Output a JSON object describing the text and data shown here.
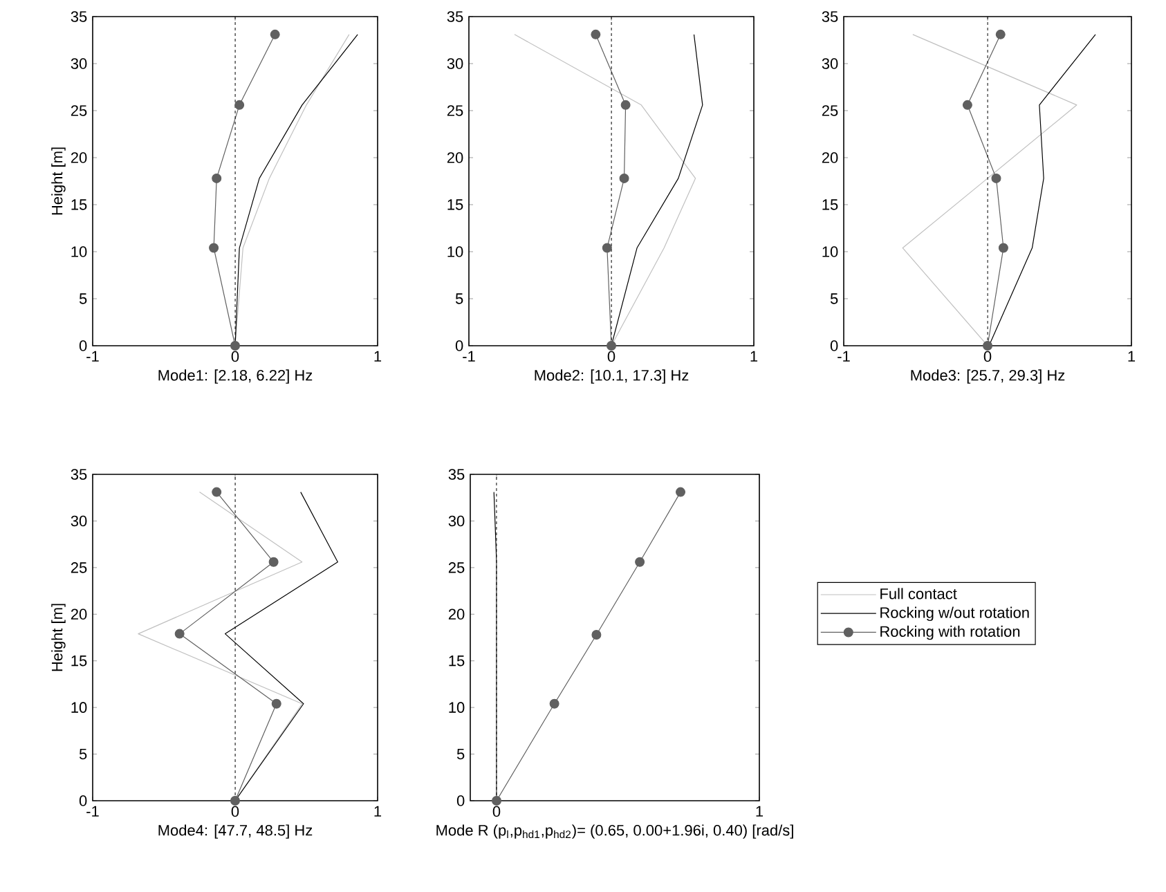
{
  "chart_data": [
    {
      "type": "line",
      "xlabel": "Mode1: [2.18, 6.22] Hz",
      "ylabel": "Height [m]",
      "xlim": [
        -1,
        1
      ],
      "xticks": [
        -1,
        0,
        1
      ],
      "ylim": [
        0,
        35
      ],
      "yticks": [
        0,
        5,
        10,
        15,
        20,
        25,
        30,
        35
      ],
      "ref_lines": [
        {
          "axis": "x",
          "value": 0,
          "line_style": "dashed",
          "color": "#000000"
        }
      ],
      "series": [
        {
          "color": "#c0c0c0",
          "x": [
            0,
            0.055,
            0.24,
            0.5,
            0.8
          ],
          "values": [
            0,
            10.4,
            17.8,
            25.6,
            33.1
          ]
        },
        {
          "color": "#000000",
          "x": [
            0,
            0.03,
            0.17,
            0.47,
            0.86
          ],
          "values": [
            0,
            10.4,
            17.8,
            25.6,
            33.1
          ]
        },
        {
          "color": "#606060",
          "marker": "circle",
          "x": [
            0,
            -0.15,
            -0.13,
            0.03,
            0.28
          ],
          "values": [
            0,
            10.4,
            17.8,
            25.6,
            33.1
          ]
        }
      ]
    },
    {
      "type": "line",
      "xlabel": "Mode2: [10.1, 17.3] Hz",
      "xlim": [
        -1,
        1
      ],
      "xticks": [
        -1,
        0,
        1
      ],
      "ylim": [
        0,
        35
      ],
      "yticks": [
        0,
        5,
        10,
        15,
        20,
        25,
        30,
        35
      ],
      "ref_lines": [
        {
          "axis": "x",
          "value": 0,
          "line_style": "dashed",
          "color": "#000000"
        }
      ],
      "series": [
        {
          "color": "#c0c0c0",
          "x": [
            0,
            0.37,
            0.59,
            0.21,
            -0.68
          ],
          "values": [
            0,
            10.4,
            17.8,
            25.6,
            33.1
          ]
        },
        {
          "color": "#000000",
          "x": [
            0,
            0.18,
            0.47,
            0.64,
            0.58
          ],
          "values": [
            0,
            10.4,
            17.8,
            25.6,
            33.1
          ]
        },
        {
          "color": "#606060",
          "marker": "circle",
          "x": [
            0,
            -0.03,
            0.09,
            0.1,
            -0.11
          ],
          "values": [
            0,
            10.4,
            17.8,
            25.6,
            33.1
          ]
        }
      ]
    },
    {
      "type": "line",
      "xlabel": "Mode3: [25.7, 29.3] Hz",
      "xlim": [
        -1,
        1
      ],
      "xticks": [
        -1,
        0,
        1
      ],
      "ylim": [
        0,
        35
      ],
      "yticks": [
        0,
        5,
        10,
        15,
        20,
        25,
        30,
        35
      ],
      "ref_lines": [
        {
          "axis": "x",
          "value": 0,
          "line_style": "dashed",
          "color": "#000000"
        }
      ],
      "series": [
        {
          "color": "#c0c0c0",
          "x": [
            0,
            -0.59,
            0.0,
            0.62,
            -0.52
          ],
          "values": [
            0,
            10.4,
            17.8,
            25.6,
            33.1
          ]
        },
        {
          "color": "#000000",
          "x": [
            0.01,
            0.31,
            0.39,
            0.36,
            0.75
          ],
          "values": [
            0,
            10.4,
            17.8,
            25.6,
            33.1
          ]
        },
        {
          "color": "#606060",
          "marker": "circle",
          "x": [
            0,
            0.11,
            0.06,
            -0.14,
            0.09
          ],
          "values": [
            0,
            10.4,
            17.8,
            25.6,
            33.1
          ]
        }
      ]
    },
    {
      "type": "line",
      "xlabel": "Mode4: [47.7, 48.5] Hz",
      "ylabel": "Height [m]",
      "xlim": [
        -1,
        1
      ],
      "xticks": [
        -1,
        0,
        1
      ],
      "ylim": [
        0,
        35
      ],
      "yticks": [
        0,
        5,
        10,
        15,
        20,
        25,
        30,
        35
      ],
      "ref_lines": [
        {
          "axis": "x",
          "value": 0,
          "line_style": "dashed",
          "color": "#000000"
        }
      ],
      "series": [
        {
          "color": "#c0c0c0",
          "x": [
            0,
            0.47,
            -0.68,
            0.47,
            -0.25
          ],
          "values": [
            0,
            10.4,
            17.9,
            25.6,
            33.1
          ]
        },
        {
          "color": "#000000",
          "x": [
            0,
            0.48,
            -0.07,
            0.72,
            0.46
          ],
          "values": [
            0,
            10.4,
            17.9,
            25.6,
            33.1
          ]
        },
        {
          "color": "#606060",
          "marker": "circle",
          "x": [
            0,
            0.29,
            -0.39,
            0.27,
            -0.13
          ],
          "values": [
            0,
            10.4,
            17.9,
            25.6,
            33.1
          ]
        }
      ]
    },
    {
      "type": "line",
      "xlabel": "Mode R (p$_{l}$,p$_{hd1}$,p$_{hd2}$)= (0.65, 0.00+1.96i, 0.40) [rad/s]",
      "xlim": [
        -0.1,
        1
      ],
      "xticks": [
        0,
        1
      ],
      "ylim": [
        0,
        35
      ],
      "yticks": [
        0,
        5,
        10,
        15,
        20,
        25,
        30,
        35
      ],
      "legend": "right",
      "ref_lines": [
        {
          "axis": "x",
          "value": 0,
          "line_style": "dashed",
          "color": "#000000"
        }
      ],
      "series": [
        {
          "name": "Full contact",
          "color": "#c0c0c0",
          "x": [
            null,
            null,
            null,
            null,
            null
          ],
          "values": [
            null,
            null,
            null,
            null,
            null
          ]
        },
        {
          "name": "Rocking w/out rotation",
          "color": "#000000",
          "x": [
            0,
            0,
            0,
            0,
            -0.01
          ],
          "values": [
            0,
            10.4,
            17.8,
            25.6,
            33.1
          ]
        },
        {
          "name": "Rocking with rotation",
          "color": "#606060",
          "marker": "circle",
          "x": [
            0,
            0.22,
            0.38,
            0.545,
            0.7
          ],
          "values": [
            0,
            10.4,
            17.8,
            25.6,
            33.1
          ]
        }
      ]
    }
  ]
}
